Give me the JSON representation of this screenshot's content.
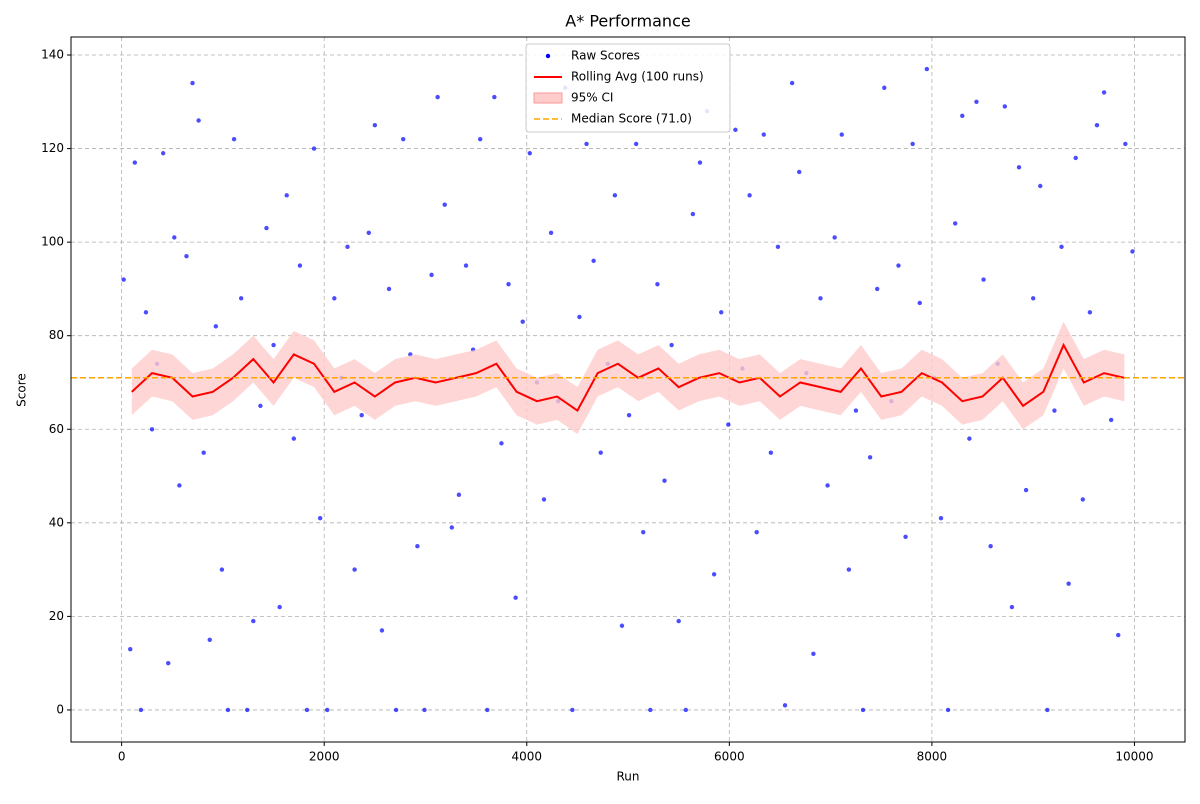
{
  "chart_data": {
    "type": "scatter",
    "title": "A* Performance",
    "x_label": "Run",
    "y_label": "Score",
    "xlim": [
      -500,
      10499
    ],
    "ylim": [
      -6.85,
      143.85
    ],
    "xticks": [
      0,
      2000,
      4000,
      6000,
      8000,
      10000
    ],
    "yticks": [
      0,
      20,
      40,
      60,
      80,
      100,
      120,
      140
    ],
    "grid": true,
    "legend": "upper center",
    "series": [
      {
        "type": "scatter",
        "name": "Raw Scores",
        "color": "blue",
        "x": [
          20,
          85,
          130,
          190,
          240,
          300,
          350,
          410,
          460,
          520,
          570,
          640,
          700,
          760,
          810,
          870,
          930,
          990,
          1050,
          1110,
          1180,
          1240,
          1300,
          1370,
          1430,
          1500,
          1560,
          1630,
          1700,
          1760,
          1830,
          1900,
          1960,
          2030,
          2100,
          2170,
          2230,
          2300,
          2370,
          2440,
          2500,
          2570,
          2640,
          2710,
          2780,
          2850,
          2920,
          2990,
          3060,
          3120,
          3190,
          3260,
          3330,
          3400,
          3470,
          3540,
          3610,
          3680,
          3750,
          3820,
          3890,
          3960,
          4030,
          4100,
          4170,
          4240,
          4310,
          4380,
          4450,
          4520,
          4590,
          4660,
          4730,
          4800,
          4870,
          4940,
          5010,
          5080,
          5150,
          5220,
          5290,
          5360,
          5430,
          5500,
          5570,
          5640,
          5710,
          5780,
          5850,
          5920,
          5990,
          6060,
          6130,
          6200,
          6270,
          6340,
          6410,
          6480,
          6550,
          6620,
          6690,
          6760,
          6830,
          6900,
          6970,
          7040,
          7110,
          7180,
          7250,
          7320,
          7390,
          7460,
          7530,
          7600,
          7670,
          7740,
          7810,
          7880,
          7950,
          8020,
          8090,
          8160,
          8230,
          8300,
          8370,
          8440,
          8510,
          8580,
          8650,
          8720,
          8790,
          8860,
          8930,
          9000,
          9070,
          9140,
          9210,
          9280,
          9350,
          9420,
          9490,
          9560,
          9630,
          9700,
          9770,
          9840,
          9910,
          9980
        ],
        "values": [
          92,
          13,
          117,
          0,
          85,
          60,
          74,
          119,
          10,
          101,
          48,
          97,
          134,
          126,
          55,
          15,
          82,
          30,
          0,
          122,
          88,
          0,
          19,
          65,
          103,
          78,
          22,
          110,
          58,
          95,
          0,
          120,
          41,
          0,
          88,
          71,
          99,
          30,
          63,
          102,
          125,
          17,
          90,
          0,
          122,
          76,
          35,
          0,
          93,
          131,
          108,
          39,
          46,
          95,
          77,
          122,
          0,
          131,
          57,
          91,
          24,
          83,
          119,
          70,
          45,
          102,
          66,
          133,
          0,
          84,
          121,
          96,
          55,
          74,
          110,
          18,
          63,
          121,
          38,
          0,
          91,
          49,
          78,
          19,
          0,
          106,
          117,
          128,
          29,
          85,
          61,
          124,
          73,
          110,
          38,
          123,
          55,
          99,
          1,
          134,
          115,
          72,
          12,
          88,
          48,
          101,
          123,
          30,
          64,
          0,
          54,
          90,
          133,
          66,
          95,
          37,
          121,
          87,
          137,
          71,
          41,
          0,
          104,
          127,
          58,
          130,
          92,
          35,
          74,
          129,
          22,
          116,
          47,
          88,
          112,
          0,
          64,
          99,
          27,
          118,
          45,
          85,
          125,
          132,
          62,
          16,
          121,
          98
        ]
      },
      {
        "type": "line",
        "name": "Rolling Avg (100 runs)",
        "color": "red",
        "x": [
          100,
          300,
          500,
          700,
          900,
          1100,
          1300,
          1500,
          1700,
          1900,
          2100,
          2300,
          2500,
          2700,
          2900,
          3100,
          3300,
          3500,
          3700,
          3900,
          4100,
          4300,
          4500,
          4700,
          4900,
          5100,
          5300,
          5500,
          5700,
          5900,
          6100,
          6300,
          6500,
          6700,
          6900,
          7100,
          7300,
          7500,
          7700,
          7900,
          8100,
          8300,
          8500,
          8700,
          8900,
          9100,
          9300,
          9500,
          9700,
          9900
        ],
        "values": [
          68,
          72,
          71,
          67,
          68,
          71,
          75,
          70,
          76,
          74,
          68,
          70,
          67,
          70,
          71,
          70,
          71,
          72,
          74,
          68,
          66,
          67,
          64,
          72,
          74,
          71,
          73,
          69,
          71,
          72,
          70,
          71,
          67,
          70,
          69,
          68,
          73,
          67,
          68,
          72,
          70,
          66,
          67,
          71,
          65,
          68,
          78,
          70,
          72,
          71
        ]
      },
      {
        "type": "band",
        "name": "95% CI",
        "color": "#ffcccc",
        "x": [
          100,
          300,
          500,
          700,
          900,
          1100,
          1300,
          1500,
          1700,
          1900,
          2100,
          2300,
          2500,
          2700,
          2900,
          3100,
          3300,
          3500,
          3700,
          3900,
          4100,
          4300,
          4500,
          4700,
          4900,
          5100,
          5300,
          5500,
          5700,
          5900,
          6100,
          6300,
          6500,
          6700,
          6900,
          7100,
          7300,
          7500,
          7700,
          7900,
          8100,
          8300,
          8500,
          8700,
          8900,
          9100,
          9300,
          9500,
          9700,
          9900
        ],
        "lower": [
          63,
          67,
          66,
          62,
          63,
          66,
          70,
          65,
          71,
          69,
          63,
          65,
          62,
          65,
          66,
          65,
          66,
          67,
          69,
          63,
          61,
          62,
          59,
          67,
          69,
          66,
          68,
          64,
          66,
          67,
          65,
          66,
          62,
          65,
          64,
          63,
          68,
          62,
          63,
          67,
          65,
          61,
          62,
          66,
          60,
          63,
          73,
          65,
          67,
          66
        ],
        "upper": [
          73,
          77,
          76,
          72,
          73,
          76,
          80,
          75,
          81,
          79,
          73,
          75,
          72,
          75,
          76,
          75,
          76,
          77,
          79,
          73,
          71,
          72,
          69,
          77,
          79,
          76,
          78,
          74,
          76,
          77,
          75,
          76,
          72,
          75,
          74,
          73,
          78,
          72,
          73,
          77,
          75,
          71,
          72,
          76,
          70,
          73,
          83,
          75,
          77,
          76
        ]
      },
      {
        "type": "hline",
        "name": "Median Score (71.0)",
        "color": "orange",
        "value": 71
      }
    ]
  }
}
